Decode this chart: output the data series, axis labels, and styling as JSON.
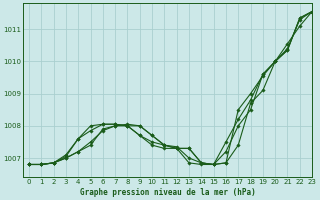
{
  "title": "Graphe pression niveau de la mer (hPa)",
  "bg_color": "#cce8e8",
  "grid_color": "#aacfcf",
  "line_color": "#1a5c1a",
  "xlim": [
    -0.5,
    23
  ],
  "ylim": [
    1006.4,
    1011.8
  ],
  "yticks": [
    1007,
    1008,
    1009,
    1010,
    1011
  ],
  "xticks": [
    0,
    1,
    2,
    3,
    4,
    5,
    6,
    7,
    8,
    9,
    10,
    11,
    12,
    13,
    14,
    15,
    16,
    17,
    18,
    19,
    20,
    21,
    22,
    23
  ],
  "series": [
    [
      1006.8,
      1006.8,
      1006.85,
      1007.0,
      1007.2,
      1007.4,
      1007.9,
      1008.0,
      1008.0,
      1008.0,
      1007.7,
      1007.4,
      1007.3,
      1007.3,
      1006.85,
      1006.8,
      1006.85,
      1008.5,
      1009.0,
      1009.55,
      1010.0,
      1010.4,
      1011.3,
      1011.55
    ],
    [
      1006.8,
      1006.8,
      1006.85,
      1007.0,
      1007.2,
      1007.5,
      1007.85,
      1008.0,
      1008.05,
      1008.0,
      1007.7,
      1007.4,
      1007.3,
      1007.3,
      1006.85,
      1006.8,
      1007.2,
      1008.0,
      1008.5,
      1009.6,
      1010.0,
      1010.35,
      1011.35,
      1011.55
    ],
    [
      1006.8,
      1006.8,
      1006.85,
      1007.05,
      1007.6,
      1007.85,
      1008.05,
      1008.05,
      1008.0,
      1007.7,
      1007.4,
      1007.3,
      1007.3,
      1006.85,
      1006.8,
      1006.8,
      1007.5,
      1008.2,
      1008.8,
      1009.6,
      1010.0,
      1010.35,
      1011.35,
      1011.55
    ],
    [
      1006.8,
      1006.8,
      1006.85,
      1007.1,
      1007.6,
      1008.0,
      1008.05,
      1008.05,
      1008.0,
      1007.7,
      1007.5,
      1007.4,
      1007.35,
      1007.0,
      1006.85,
      1006.8,
      1006.85,
      1007.4,
      1008.7,
      1009.1,
      1010.0,
      1010.55,
      1011.1,
      1011.55
    ]
  ]
}
